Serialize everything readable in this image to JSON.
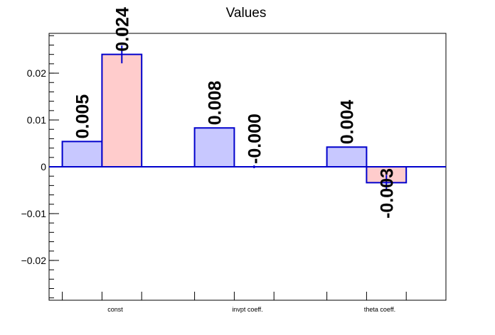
{
  "chart_data": {
    "type": "bar",
    "title": "Values",
    "categories": [
      "const",
      "invpt coeff.",
      "theta coeff."
    ],
    "series": [
      {
        "values": [
          0.0054,
          0.0083,
          0.0042
        ],
        "labels": [
          "0.005",
          "0.008",
          "0.004"
        ],
        "errors": [
          0,
          0,
          0
        ],
        "fill": "#c8c8ff",
        "stroke": "#0000cc"
      },
      {
        "values": [
          0.024,
          0.0,
          -0.0034
        ],
        "labels": [
          "0.024",
          "-0.000",
          "-0.003"
        ],
        "errors": [
          0.0019,
          0.0003,
          0.0017
        ],
        "fill": "#ffcccc",
        "stroke": "#0000cc"
      }
    ],
    "ylim": [
      -0.0285,
      0.0285
    ],
    "yticks": [
      -0.02,
      -0.01,
      0,
      0.01,
      0.02
    ],
    "ytick_labels": [
      "−0.02",
      "−0.01",
      "0",
      "0.01",
      "0.02"
    ],
    "grid": false,
    "legend": "none"
  }
}
